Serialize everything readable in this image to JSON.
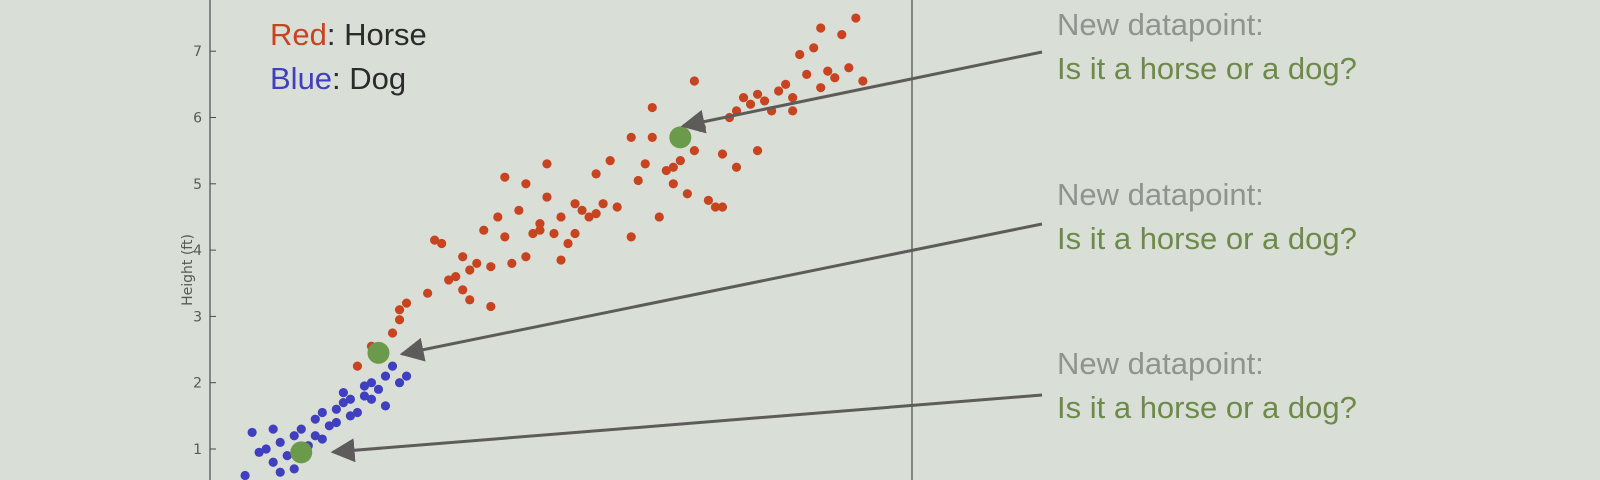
{
  "colors": {
    "horse": "#c8431f",
    "dog": "#3f3fc0",
    "new_point": "#6b9a4a",
    "annotation_line1": "#8f948e",
    "annotation_line2": "#6e8a4a",
    "arrow": "#5e5b5b",
    "axis": "#4a4a4a",
    "legend_text": "#2b2b2b"
  },
  "legend": {
    "items": [
      {
        "key": "Red",
        "label": "Horse",
        "color": "#c8431f"
      },
      {
        "key": "Blue",
        "label": "Dog",
        "color": "#3f3fc0"
      }
    ]
  },
  "annotations": [
    {
      "line1": "New datapoint:",
      "line2": "Is it a horse or a dog?"
    },
    {
      "line1": "New datapoint:",
      "line2": "Is it a horse or a dog?"
    },
    {
      "line1": "New datapoint:",
      "line2": "Is it a horse or a dog?"
    }
  ],
  "chart_data": {
    "type": "scatter",
    "ylabel": "Height (ft)",
    "xlabel": "",
    "y_ticks": [
      1,
      2,
      3,
      4,
      5,
      6,
      7
    ],
    "ylim": [
      0.6,
      7.8
    ],
    "xlim": [
      0,
      1
    ],
    "grid": false,
    "legend_position": "top-left",
    "series": [
      {
        "name": "Horse",
        "color": "#c8431f",
        "points": [
          [
            0.21,
            2.25
          ],
          [
            0.23,
            2.55
          ],
          [
            0.26,
            2.75
          ],
          [
            0.27,
            2.95
          ],
          [
            0.27,
            3.1
          ],
          [
            0.28,
            3.2
          ],
          [
            0.31,
            3.35
          ],
          [
            0.32,
            4.15
          ],
          [
            0.33,
            4.1
          ],
          [
            0.34,
            3.55
          ],
          [
            0.35,
            3.6
          ],
          [
            0.36,
            3.4
          ],
          [
            0.36,
            3.9
          ],
          [
            0.37,
            3.25
          ],
          [
            0.37,
            3.7
          ],
          [
            0.38,
            3.8
          ],
          [
            0.39,
            4.3
          ],
          [
            0.4,
            3.15
          ],
          [
            0.41,
            4.5
          ],
          [
            0.42,
            4.2
          ],
          [
            0.43,
            3.8
          ],
          [
            0.44,
            4.6
          ],
          [
            0.45,
            3.9
          ],
          [
            0.46,
            4.25
          ],
          [
            0.47,
            4.3
          ],
          [
            0.47,
            4.4
          ],
          [
            0.48,
            4.8
          ],
          [
            0.49,
            4.25
          ],
          [
            0.5,
            4.5
          ],
          [
            0.51,
            4.1
          ],
          [
            0.52,
            4.25
          ],
          [
            0.52,
            4.7
          ],
          [
            0.53,
            4.6
          ],
          [
            0.54,
            4.5
          ],
          [
            0.55,
            4.55
          ],
          [
            0.56,
            4.7
          ],
          [
            0.57,
            5.35
          ],
          [
            0.58,
            4.65
          ],
          [
            0.6,
            4.2
          ],
          [
            0.61,
            5.05
          ],
          [
            0.62,
            5.3
          ],
          [
            0.63,
            5.7
          ],
          [
            0.64,
            4.5
          ],
          [
            0.65,
            5.2
          ],
          [
            0.66,
            5.0
          ],
          [
            0.67,
            5.35
          ],
          [
            0.68,
            4.85
          ],
          [
            0.69,
            5.5
          ],
          [
            0.7,
            5.85
          ],
          [
            0.71,
            4.75
          ],
          [
            0.72,
            4.65
          ],
          [
            0.73,
            5.45
          ],
          [
            0.74,
            6.0
          ],
          [
            0.75,
            5.25
          ],
          [
            0.76,
            6.3
          ],
          [
            0.77,
            6.2
          ],
          [
            0.78,
            5.5
          ],
          [
            0.79,
            6.25
          ],
          [
            0.8,
            6.1
          ],
          [
            0.81,
            6.4
          ],
          [
            0.82,
            6.5
          ],
          [
            0.83,
            6.3
          ],
          [
            0.84,
            6.95
          ],
          [
            0.85,
            6.65
          ],
          [
            0.86,
            7.05
          ],
          [
            0.87,
            7.35
          ],
          [
            0.88,
            6.7
          ],
          [
            0.89,
            6.6
          ],
          [
            0.9,
            7.25
          ],
          [
            0.91,
            6.75
          ],
          [
            0.92,
            7.5
          ],
          [
            0.45,
            5.0
          ],
          [
            0.42,
            5.1
          ],
          [
            0.48,
            5.3
          ],
          [
            0.55,
            5.15
          ],
          [
            0.69,
            6.55
          ],
          [
            0.63,
            6.15
          ],
          [
            0.93,
            6.55
          ],
          [
            0.73,
            4.65
          ],
          [
            0.66,
            5.25
          ],
          [
            0.78,
            6.35
          ],
          [
            0.83,
            6.1
          ],
          [
            0.87,
            6.45
          ],
          [
            0.75,
            6.1
          ],
          [
            0.6,
            5.7
          ],
          [
            0.5,
            3.85
          ],
          [
            0.4,
            3.75
          ]
        ]
      },
      {
        "name": "Dog",
        "color": "#3f3fc0",
        "points": [
          [
            0.05,
            0.6
          ],
          [
            0.06,
            1.25
          ],
          [
            0.07,
            0.95
          ],
          [
            0.08,
            1.0
          ],
          [
            0.09,
            0.8
          ],
          [
            0.1,
            0.65
          ],
          [
            0.1,
            1.1
          ],
          [
            0.11,
            0.9
          ],
          [
            0.12,
            1.2
          ],
          [
            0.12,
            0.7
          ],
          [
            0.13,
            1.3
          ],
          [
            0.14,
            1.05
          ],
          [
            0.15,
            1.2
          ],
          [
            0.15,
            1.45
          ],
          [
            0.16,
            1.55
          ],
          [
            0.17,
            1.35
          ],
          [
            0.18,
            1.6
          ],
          [
            0.18,
            1.4
          ],
          [
            0.19,
            1.7
          ],
          [
            0.19,
            1.85
          ],
          [
            0.2,
            1.5
          ],
          [
            0.21,
            1.55
          ],
          [
            0.22,
            1.8
          ],
          [
            0.22,
            1.95
          ],
          [
            0.23,
            2.0
          ],
          [
            0.23,
            1.75
          ],
          [
            0.24,
            1.9
          ],
          [
            0.25,
            2.1
          ],
          [
            0.25,
            1.65
          ],
          [
            0.26,
            2.25
          ],
          [
            0.27,
            2.0
          ],
          [
            0.28,
            2.1
          ],
          [
            0.13,
            0.9
          ],
          [
            0.09,
            1.3
          ],
          [
            0.16,
            1.15
          ],
          [
            0.2,
            1.75
          ]
        ]
      },
      {
        "name": "",
        "color": "#6b9a4a",
        "points": [
          [
            0.67,
            5.7
          ],
          [
            0.24,
            2.45
          ],
          [
            0.13,
            0.95
          ]
        ]
      }
    ]
  }
}
